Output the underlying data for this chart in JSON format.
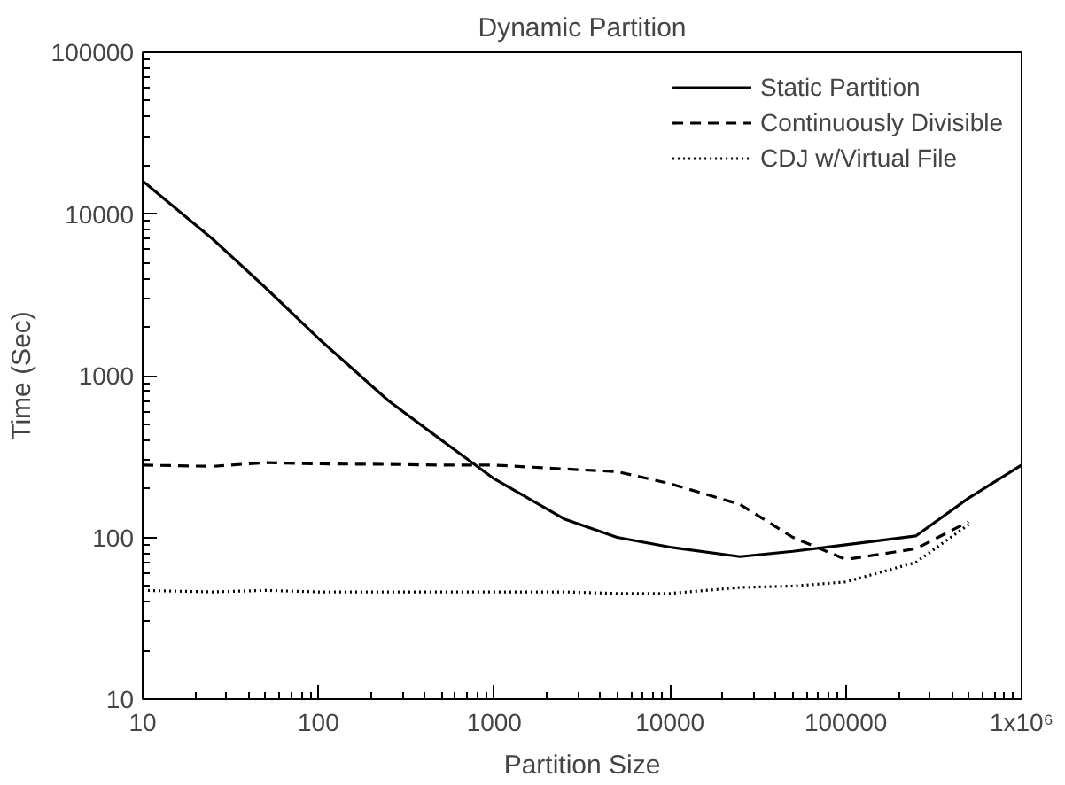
{
  "chart_data": {
    "type": "line",
    "title": "Dynamic Partition",
    "xlabel": "Partition Size",
    "ylabel": "Time (Sec)",
    "log": "xy",
    "grid": false,
    "legend": "top right",
    "marker": "none",
    "xlim": [
      10,
      1000000
    ],
    "ylim": [
      10,
      100000
    ],
    "xticks": [
      10,
      100,
      1000,
      10000,
      100000,
      {
        "value": 1000000,
        "label": "1x10⁶"
      }
    ],
    "yticks": [
      10,
      100,
      1000,
      10000,
      100000
    ],
    "x": [
      10,
      25,
      50,
      100,
      250,
      500,
      1000,
      2500,
      5000,
      10000,
      25000,
      50000,
      100000,
      250000,
      500000,
      1000000
    ],
    "series": [
      {
        "name": "Static Partition",
        "color": "#000000",
        "line_style": "solid",
        "values": [
          16000,
          7000,
          3500,
          1700,
          700,
          400,
          230,
          130,
          100,
          87,
          76,
          82,
          90,
          102,
          175,
          280
        ]
      },
      {
        "name": "Continuously Divisible",
        "color": "#000000",
        "line_style": "dashed",
        "values": [
          280,
          275,
          290,
          285,
          283,
          280,
          280,
          265,
          255,
          215,
          160,
          100,
          73,
          85,
          125,
          null
        ]
      },
      {
        "name": "CDJ w/Virtual File",
        "color": "#000000",
        "line_style": "dotted",
        "values": [
          47,
          46,
          47,
          46,
          46,
          46,
          46,
          46,
          45,
          45,
          49,
          50,
          53,
          70,
          120,
          null
        ]
      }
    ]
  }
}
